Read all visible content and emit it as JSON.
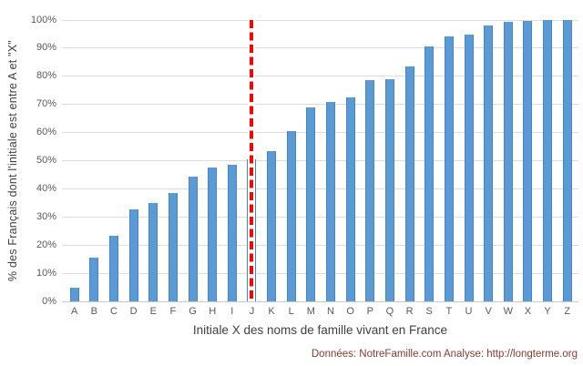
{
  "chart_data": {
    "type": "bar",
    "categories": [
      "A",
      "B",
      "C",
      "D",
      "E",
      "F",
      "G",
      "H",
      "I",
      "J",
      "K",
      "L",
      "M",
      "N",
      "O",
      "P",
      "Q",
      "R",
      "S",
      "T",
      "U",
      "V",
      "W",
      "X",
      "Y",
      "Z"
    ],
    "values": [
      5,
      15.5,
      23.3,
      32.7,
      35,
      38.5,
      44.5,
      47.5,
      48.5,
      50.5,
      53.5,
      60.5,
      69,
      71,
      72.5,
      78.5,
      79,
      83.5,
      90.5,
      94.3,
      94.7,
      98.2,
      99.5,
      99.6,
      100,
      100
    ],
    "title": "",
    "xlabel": "Initiale X des noms de famille vivant en France",
    "ylabel": "% des Français dont l'initiale est entre A et \"X\"",
    "ylim": [
      0,
      100
    ],
    "ytick_step": 10,
    "ytick_suffix": "%",
    "grid": true,
    "legend": "none",
    "bar_color": "#5B9BD5",
    "gridline_color": "#dcdcdc",
    "reference_line": {
      "category": "J",
      "color": "#FF0000",
      "style": "dashed",
      "orientation": "vertical"
    }
  },
  "footer": {
    "text": "Données: NotreFamille.com Analyse: http://longterme.org",
    "color": "#833C32"
  }
}
